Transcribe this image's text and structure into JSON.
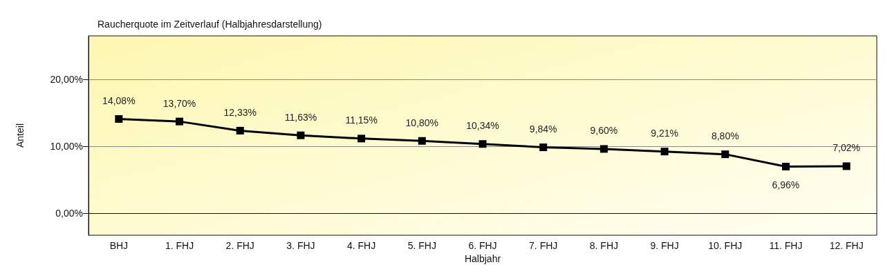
{
  "chart_data": {
    "type": "line",
    "title": "Raucherquote im Zeitverlauf (Halbjahresdarstellung)",
    "xlabel": "Halbjahr",
    "ylabel": "Anteil",
    "categories": [
      "BHJ",
      "1. FHJ",
      "2. FHJ",
      "3. FHJ",
      "4. FHJ",
      "5. FHJ",
      "6. FHJ",
      "7. FHJ",
      "8. FHJ",
      "9. FHJ",
      "10. FHJ",
      "11. FHJ",
      "12. FHJ"
    ],
    "series": [
      {
        "color": "#000000",
        "values": [
          14.08,
          13.7,
          12.33,
          11.63,
          11.15,
          10.8,
          10.34,
          9.84,
          9.6,
          9.21,
          8.8,
          6.96,
          7.02
        ],
        "value_labels": [
          "14,08%",
          "13,70%",
          "12,33%",
          "11,63%",
          "11,15%",
          "10,80%",
          "10,34%",
          "9,84%",
          "9,60%",
          "9,21%",
          "8,80%",
          "6,96%",
          "7,02%"
        ]
      }
    ],
    "ylim": [
      -3.3,
      26.5
    ],
    "yticks": [
      {
        "value": 0,
        "label": "0,00%"
      },
      {
        "value": 10,
        "label": "10,00%"
      },
      {
        "value": 20,
        "label": "20,00%"
      }
    ],
    "grid": "y",
    "marker": "square",
    "line_style": "solid"
  }
}
